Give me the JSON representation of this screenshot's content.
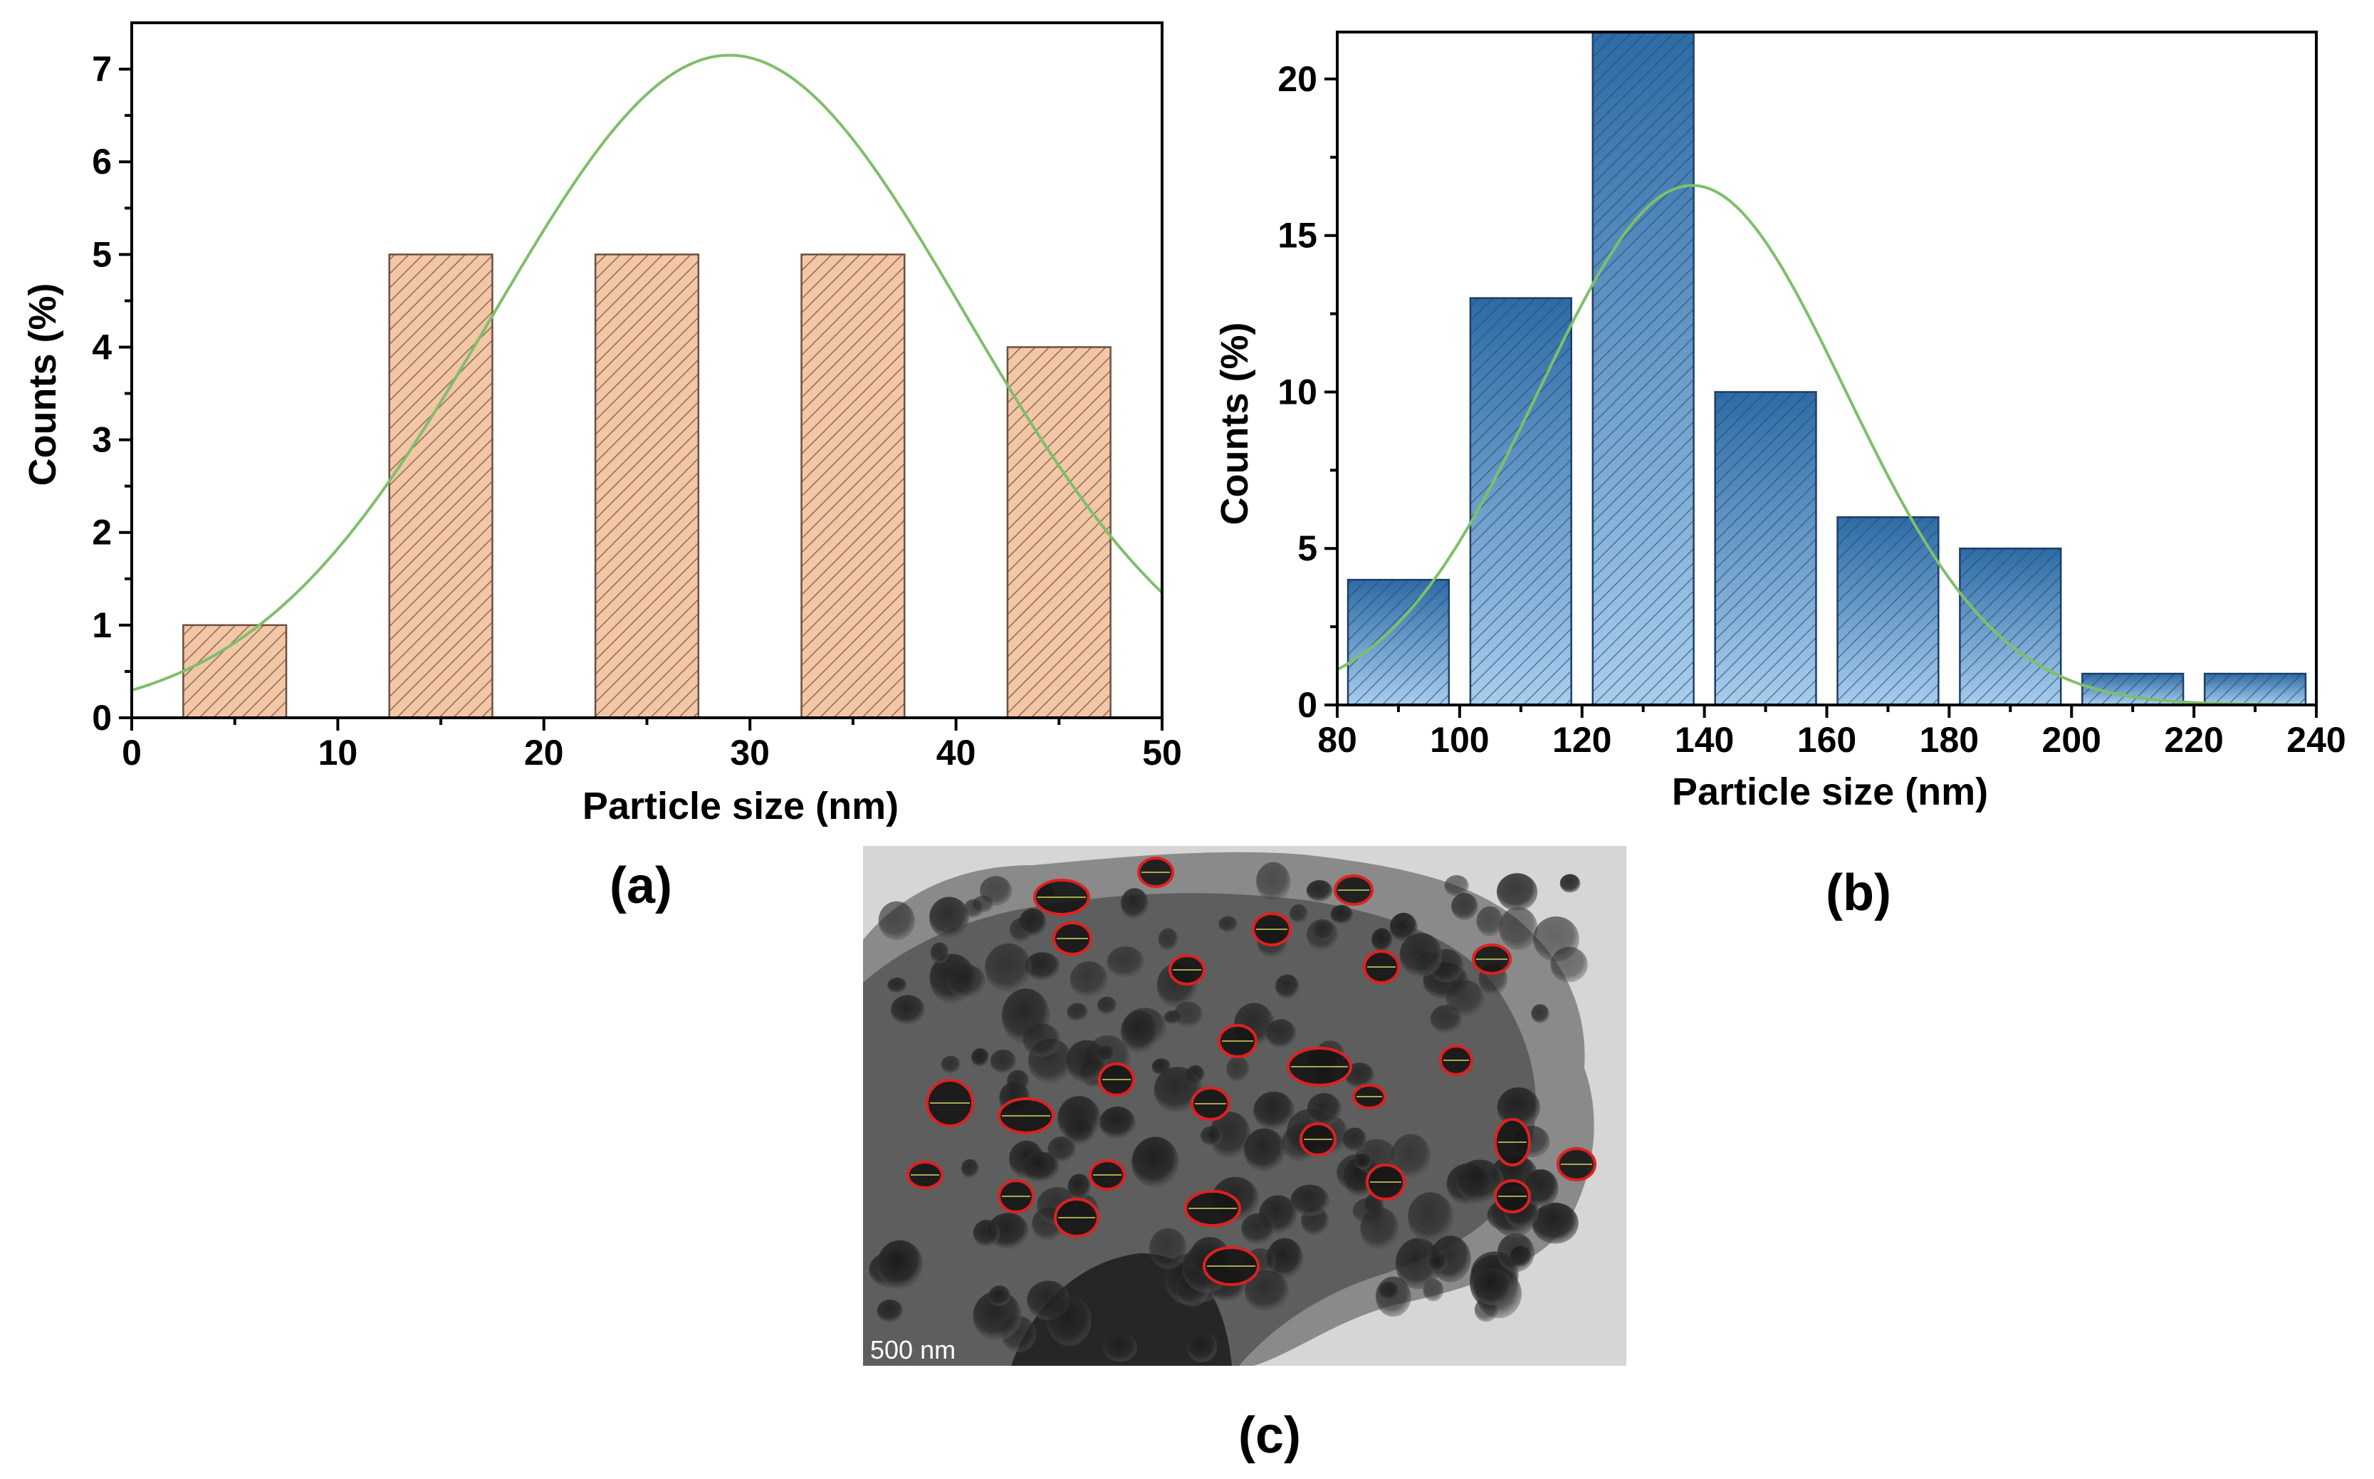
{
  "chart_data": [
    {
      "id": "a",
      "type": "bar",
      "panel_label": "(a)",
      "title": "",
      "xlabel": "Particle size (nm)",
      "ylabel": "Counts (%)",
      "xlim": [
        0,
        50
      ],
      "ylim": [
        0,
        7.5
      ],
      "xticks": [
        0,
        10,
        20,
        30,
        40,
        50
      ],
      "yticks": [
        0,
        1,
        2,
        3,
        4,
        5,
        6,
        7
      ],
      "bin_width": 5,
      "bin_centers": [
        5,
        15,
        25,
        35,
        45
      ],
      "values": [
        1,
        5,
        5,
        5,
        4
      ],
      "fill_color": "#f3c6a6",
      "edge_color": "#6b5040",
      "hatch_color": "#8a6a55",
      "fit": {
        "type": "gaussian",
        "amplitude": 7.15,
        "mean": 29,
        "sigma": 11.5,
        "color": "#7fbf6a"
      }
    },
    {
      "id": "b",
      "type": "bar",
      "panel_label": "(b)",
      "title": "",
      "xlabel": "Particle size (nm)",
      "ylabel": "Counts (%)",
      "xlim": [
        80,
        240
      ],
      "ylim": [
        0,
        21.5
      ],
      "xticks": [
        80,
        100,
        120,
        140,
        160,
        180,
        200,
        220,
        240
      ],
      "yticks": [
        0,
        5,
        10,
        15,
        20
      ],
      "bin_width": 16.5,
      "bin_centers": [
        90,
        110,
        130,
        150,
        170,
        190,
        210,
        230
      ],
      "values": [
        4,
        13,
        22,
        10,
        6,
        5,
        1,
        1
      ],
      "fill_top_color": "#2e6ba5",
      "fill_bottom_color": "#a8cdec",
      "edge_color": "#1d3f66",
      "hatch_color": "#1d4a78",
      "fit": {
        "type": "gaussian",
        "amplitude": 16.6,
        "mean": 138,
        "sigma": 25,
        "color": "#7fbf6a"
      }
    }
  ],
  "image_panel": {
    "panel_label": "(c)",
    "scale_bar_text": "500 nm",
    "marker_color": "#e02020"
  }
}
